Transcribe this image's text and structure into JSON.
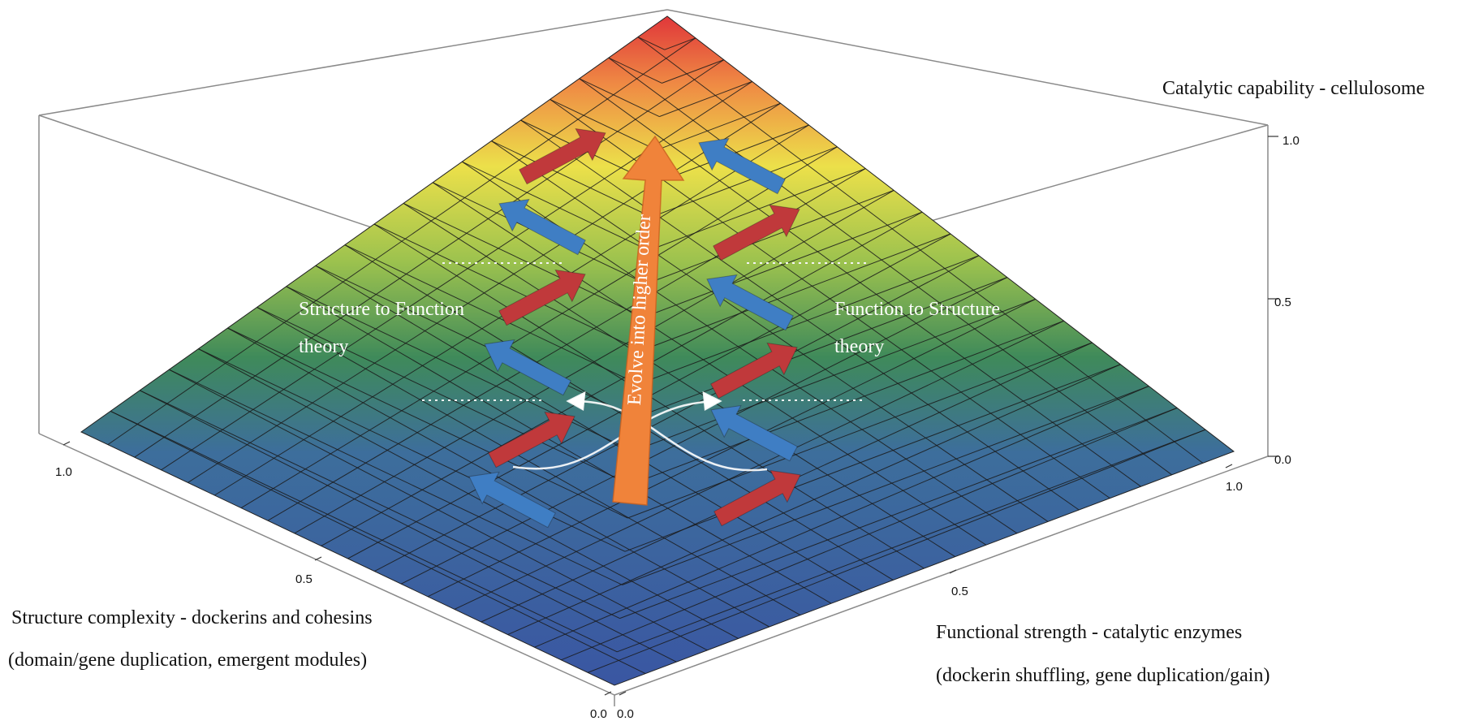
{
  "z_axis": {
    "title": "Catalytic capability - cellulosome",
    "ticks": [
      "1.0",
      "0.5",
      "0.0"
    ]
  },
  "left_axis": {
    "title_line1": "Structure complexity - dockerins and cohesins",
    "title_line2": "(domain/gene duplication, emergent modules)",
    "ticks": [
      "1.0",
      "0.5",
      "0.0"
    ]
  },
  "right_axis": {
    "title_line1": "Functional strength - catalytic enzymes",
    "title_line2": "(dockerin shuffling, gene duplication/gain)",
    "ticks": [
      "0.0",
      "0.5",
      "1.0"
    ]
  },
  "annotations": {
    "left_theory_line1": "Structure to Function",
    "left_theory_line2": "theory",
    "right_theory_line1": "Function to Structure",
    "right_theory_line2": "theory",
    "center_arrow_label": "Evolve into higher order"
  },
  "colors": {
    "surface_low": "#3d5fa8",
    "surface_mid": "#3f8a5a",
    "surface_upper": "#e8df4a",
    "surface_high": "#e0373a",
    "red_arrow": "#c0393b",
    "blue_arrow": "#3f7ec4",
    "center_arrow": "#f0833a"
  }
}
